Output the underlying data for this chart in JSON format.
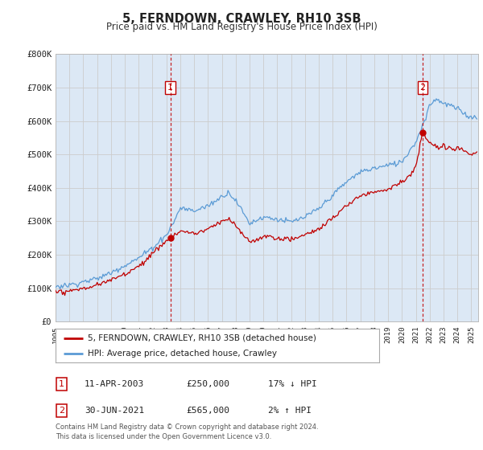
{
  "title": "5, FERNDOWN, CRAWLEY, RH10 3SB",
  "subtitle": "Price paid vs. HM Land Registry's House Price Index (HPI)",
  "legend_line1": "5, FERNDOWN, CRAWLEY, RH10 3SB (detached house)",
  "legend_line2": "HPI: Average price, detached house, Crawley",
  "annotation1_label": "1",
  "annotation1_date": "11-APR-2003",
  "annotation1_price": "£250,000",
  "annotation1_hpi": "17% ↓ HPI",
  "annotation2_label": "2",
  "annotation2_date": "30-JUN-2021",
  "annotation2_price": "£565,000",
  "annotation2_hpi": "2% ↑ HPI",
  "footnote1": "Contains HM Land Registry data © Crown copyright and database right 2024.",
  "footnote2": "This data is licensed under the Open Government Licence v3.0.",
  "sale1_year": 2003.28,
  "sale1_price": 250000,
  "sale2_year": 2021.5,
  "sale2_price": 565000,
  "hpi_color": "#5b9bd5",
  "property_color": "#c00000",
  "vline_color": "#c00000",
  "bg_fill_color": "#dce8f5",
  "ylim_max": 800000,
  "xlim_start": 1995,
  "xlim_end": 2025.5,
  "background_color": "#ffffff",
  "grid_color": "#cccccc"
}
